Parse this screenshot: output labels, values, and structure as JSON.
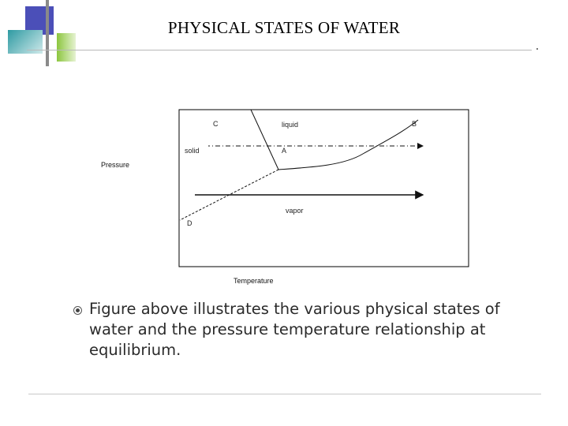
{
  "slide": {
    "title": "PHYSICAL STATES OF WATER",
    "body_text": "Figure above illustrates the various physical states of water and the pressure temperature relationship at equilibrium."
  },
  "diagram": {
    "y_axis_label": "Pressure",
    "x_axis_label": "Temperature",
    "region_labels": {
      "solid": "solid",
      "liquid": "liquid",
      "vapor": "vapor"
    },
    "point_labels": {
      "a": "A",
      "b": "B",
      "c": "C",
      "d": "D"
    }
  }
}
